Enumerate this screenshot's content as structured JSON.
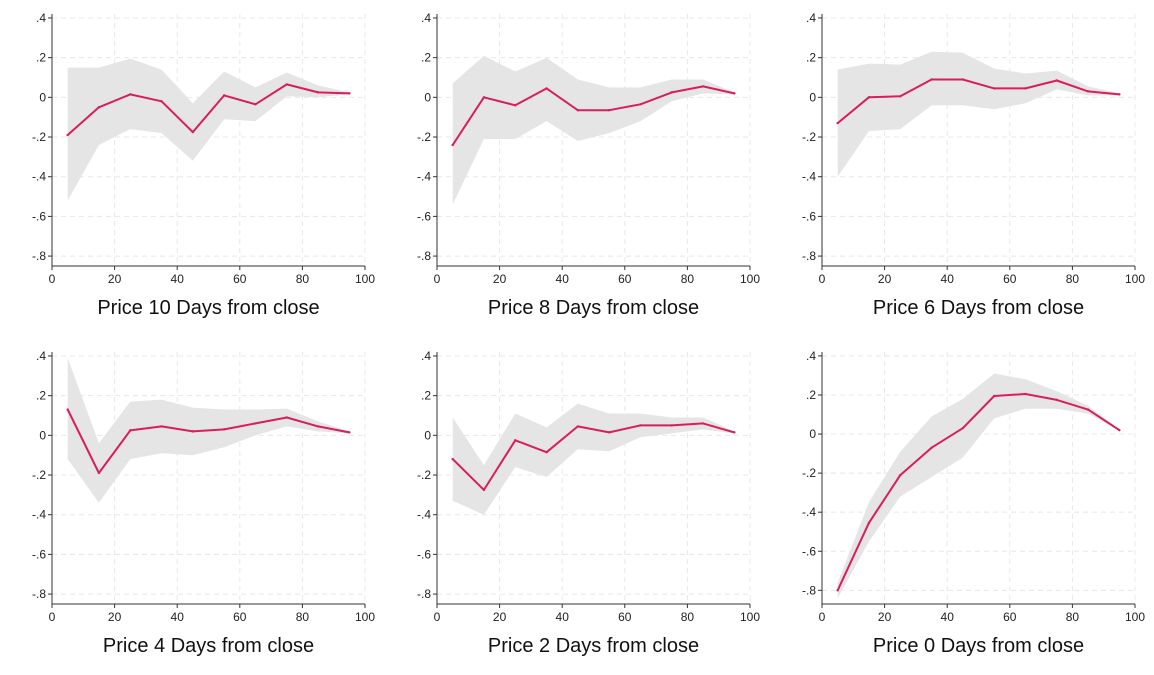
{
  "chart_data": [
    {
      "type": "line",
      "title": "Price 10 Days from close",
      "x": [
        5,
        15,
        25,
        35,
        45,
        55,
        65,
        75,
        85,
        95
      ],
      "series": [
        {
          "values": [
            -0.19,
            -0.05,
            0.015,
            -0.02,
            -0.175,
            0.01,
            -0.035,
            0.065,
            0.025,
            0.02
          ]
        }
      ],
      "ci_lower": [
        -0.52,
        -0.24,
        -0.16,
        -0.18,
        -0.32,
        -0.11,
        -0.12,
        0.005,
        0.0,
        0.015
      ],
      "ci_upper": [
        0.15,
        0.15,
        0.195,
        0.14,
        -0.03,
        0.13,
        0.05,
        0.125,
        0.06,
        0.025
      ],
      "xlim": [
        0,
        100
      ],
      "ylim": [
        -0.85,
        0.42
      ],
      "xticks": [
        "0",
        "20",
        "40",
        "60",
        "80",
        "100"
      ],
      "yticks": [
        ".4",
        ".2",
        "0",
        "-.2",
        "-.4",
        "-.6",
        "-.8"
      ],
      "grid": true
    },
    {
      "type": "line",
      "title": "Price 8 Days from close",
      "x": [
        5,
        15,
        25,
        35,
        45,
        55,
        65,
        75,
        85,
        95
      ],
      "series": [
        {
          "values": [
            -0.24,
            0.0,
            -0.04,
            0.045,
            -0.065,
            -0.065,
            -0.035,
            0.025,
            0.055,
            0.02
          ]
        }
      ],
      "ci_lower": [
        -0.54,
        -0.21,
        -0.21,
        -0.12,
        -0.22,
        -0.18,
        -0.12,
        -0.02,
        0.02,
        0.015
      ],
      "ci_upper": [
        0.07,
        0.21,
        0.13,
        0.2,
        0.09,
        0.05,
        0.05,
        0.09,
        0.09,
        0.025
      ],
      "xlim": [
        0,
        100
      ],
      "ylim": [
        -0.85,
        0.42
      ],
      "xticks": [
        "0",
        "20",
        "40",
        "60",
        "80",
        "100"
      ],
      "yticks": [
        ".4",
        ".2",
        "0",
        "-.2",
        "-.4",
        "-.6",
        "-.8"
      ],
      "grid": true
    },
    {
      "type": "line",
      "title": "Price 6 Days from close",
      "x": [
        5,
        15,
        25,
        35,
        45,
        55,
        65,
        75,
        85,
        95
      ],
      "series": [
        {
          "values": [
            -0.13,
            0.0,
            0.005,
            0.09,
            0.09,
            0.045,
            0.045,
            0.085,
            0.03,
            0.015
          ]
        }
      ],
      "ci_lower": [
        -0.4,
        -0.17,
        -0.16,
        -0.04,
        -0.04,
        -0.06,
        -0.03,
        0.04,
        0.01,
        0.01
      ],
      "ci_upper": [
        0.14,
        0.17,
        0.165,
        0.23,
        0.225,
        0.145,
        0.12,
        0.135,
        0.055,
        0.02
      ],
      "xlim": [
        0,
        100
      ],
      "ylim": [
        -0.85,
        0.42
      ],
      "xticks": [
        "0",
        "20",
        "40",
        "60",
        "80",
        "100"
      ],
      "yticks": [
        ".4",
        ".2",
        "0",
        "-.2",
        "-.4",
        "-.6",
        "-.8"
      ],
      "grid": true
    },
    {
      "type": "line",
      "title": "Price 4 Days from close",
      "x": [
        5,
        15,
        25,
        35,
        45,
        55,
        65,
        75,
        85,
        95
      ],
      "series": [
        {
          "values": [
            0.13,
            -0.19,
            0.025,
            0.045,
            0.02,
            0.03,
            0.06,
            0.09,
            0.045,
            0.015
          ]
        }
      ],
      "ci_lower": [
        -0.12,
        -0.34,
        -0.12,
        -0.09,
        -0.1,
        -0.06,
        0.0,
        0.045,
        0.02,
        0.01
      ],
      "ci_upper": [
        0.39,
        -0.04,
        0.17,
        0.18,
        0.14,
        0.13,
        0.13,
        0.135,
        0.07,
        0.02
      ],
      "xlim": [
        0,
        100
      ],
      "ylim": [
        -0.85,
        0.42
      ],
      "xticks": [
        "0",
        "20",
        "40",
        "60",
        "80",
        "100"
      ],
      "yticks": [
        ".4",
        ".2",
        "0",
        "-.2",
        "-.4",
        "-.6",
        "-.8"
      ],
      "grid": true
    },
    {
      "type": "line",
      "title": "Price 2 Days from close",
      "x": [
        5,
        15,
        25,
        35,
        45,
        55,
        65,
        75,
        85,
        95
      ],
      "series": [
        {
          "values": [
            -0.12,
            -0.275,
            -0.025,
            -0.085,
            0.045,
            0.015,
            0.05,
            0.05,
            0.06,
            0.015
          ]
        }
      ],
      "ci_lower": [
        -0.33,
        -0.4,
        -0.16,
        -0.21,
        -0.07,
        -0.08,
        -0.01,
        0.01,
        0.03,
        0.01
      ],
      "ci_upper": [
        0.09,
        -0.15,
        0.11,
        0.04,
        0.16,
        0.11,
        0.11,
        0.09,
        0.09,
        0.02
      ],
      "xlim": [
        0,
        100
      ],
      "ylim": [
        -0.85,
        0.42
      ],
      "xticks": [
        "0",
        "20",
        "40",
        "60",
        "80",
        "100"
      ],
      "yticks": [
        ".4",
        ".2",
        "0",
        "-.2",
        "-.4",
        "-.6",
        "-.8"
      ],
      "grid": true
    },
    {
      "type": "line",
      "title": "Price 0 Days from close",
      "x": [
        5,
        15,
        25,
        35,
        45,
        55,
        65,
        75,
        85,
        95
      ],
      "series": [
        {
          "values": [
            -0.8,
            -0.455,
            -0.21,
            -0.07,
            0.03,
            0.195,
            0.205,
            0.175,
            0.125,
            0.02
          ]
        }
      ],
      "ci_lower": [
        -0.84,
        -0.55,
        -0.32,
        -0.22,
        -0.12,
        0.08,
        0.13,
        0.13,
        0.105,
        0.015
      ],
      "ci_upper": [
        -0.76,
        -0.35,
        -0.09,
        0.09,
        0.18,
        0.31,
        0.28,
        0.22,
        0.145,
        0.025
      ],
      "xlim": [
        0,
        100
      ],
      "ylim": [
        -0.87,
        0.42
      ],
      "xticks": [
        "0",
        "20",
        "40",
        "60",
        "80",
        "100"
      ],
      "yticks": [
        ".4",
        ".2",
        "0",
        "-.2",
        "-.4",
        "-.6",
        "-.8"
      ],
      "grid": true
    }
  ],
  "colors": {
    "line": "#d81e5b",
    "band": "#e5e5e5",
    "grid": "#e8e8e8",
    "axis": "#333333"
  }
}
